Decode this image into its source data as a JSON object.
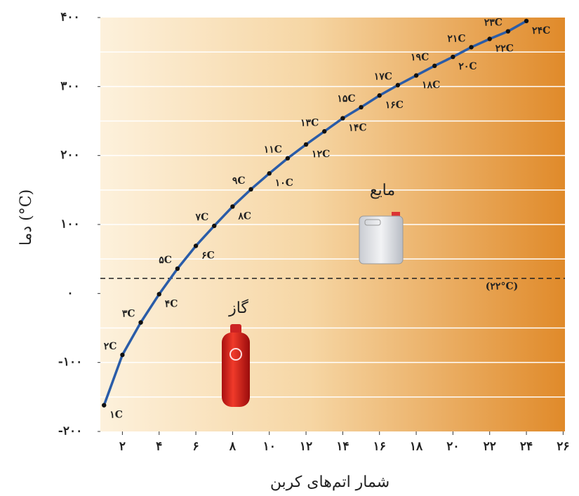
{
  "chart_data": {
    "type": "line",
    "x_label": "شمار اتم‌های کربن",
    "y_label": "دما (°C)",
    "x": [
      1,
      2,
      3,
      4,
      5,
      6,
      7,
      8,
      9,
      10,
      11,
      12,
      13,
      14,
      15,
      16,
      17,
      18,
      19,
      20,
      21,
      22,
      23,
      24
    ],
    "series": [
      {
        "color": "#2a5ca8",
        "values": [
          -162,
          -89,
          -42,
          -1,
          36,
          69,
          98,
          126,
          151,
          174,
          196,
          216,
          235,
          254,
          270,
          287,
          302,
          316,
          330,
          343,
          357,
          369,
          380,
          395
        ]
      }
    ],
    "point_labels": [
      "۱C",
      "۲C",
      "۳C",
      "۴C",
      "۵C",
      "۶C",
      "۷C",
      "۸C",
      "۹C",
      "۱۰C",
      "۱۱C",
      "۱۲C",
      "۱۳C",
      "۱۴C",
      "۱۵C",
      "۱۶C",
      "۱۷C",
      "۱۸C",
      "۱۹C",
      "۲۰C",
      "۲۱C",
      "۲۲C",
      "۲۳C",
      "۲۴C"
    ],
    "xlim": [
      0.8,
      26.1
    ],
    "ylim": [
      -200,
      400
    ],
    "xticks": [
      {
        "value": 2,
        "label": "۲"
      },
      {
        "value": 4,
        "label": "۴"
      },
      {
        "value": 6,
        "label": "۶"
      },
      {
        "value": 8,
        "label": "۸"
      },
      {
        "value": 10,
        "label": "۱۰"
      },
      {
        "value": 12,
        "label": "۱۲"
      },
      {
        "value": 14,
        "label": "۱۴"
      },
      {
        "value": 16,
        "label": "۱۶"
      },
      {
        "value": 18,
        "label": "۱۸"
      },
      {
        "value": 20,
        "label": "۲۰"
      },
      {
        "value": 22,
        "label": "۲۲"
      },
      {
        "value": 24,
        "label": "۲۴"
      },
      {
        "value": 26,
        "label": "۲۶"
      }
    ],
    "yticks": [
      {
        "value": -200,
        "label": "-۲۰۰"
      },
      {
        "value": -100,
        "label": "-۱۰۰"
      },
      {
        "value": 0,
        "label": "۰"
      },
      {
        "value": 100,
        "label": "۱۰۰"
      },
      {
        "value": 200,
        "label": "۲۰۰"
      },
      {
        "value": 300,
        "label": "۳۰۰"
      },
      {
        "value": 400,
        "label": "۴۰۰"
      }
    ],
    "ygrid": [
      -150,
      -100,
      -50,
      50,
      100,
      150,
      200,
      250,
      300,
      350
    ],
    "reference_line": {
      "value": 22,
      "label": "(۲۲°C)"
    },
    "annotations": [
      "مایع",
      "گاز"
    ]
  }
}
